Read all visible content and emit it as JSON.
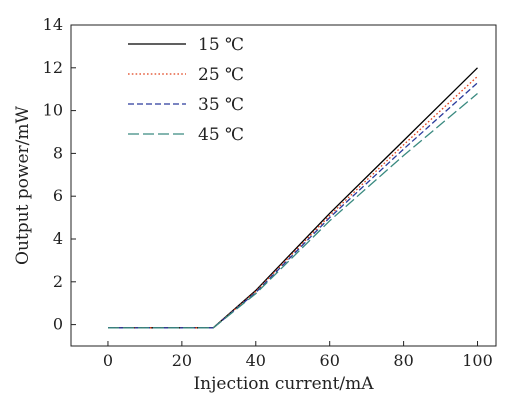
{
  "chart_data": {
    "type": "line",
    "title": "",
    "xlabel": "Injection current/mA",
    "ylabel": "Output power/mW",
    "xlim": [
      -10,
      105
    ],
    "ylim": [
      -1,
      14
    ],
    "xticks": [
      0,
      20,
      40,
      60,
      80,
      100
    ],
    "yticks": [
      0,
      2,
      4,
      6,
      8,
      10,
      12,
      14
    ],
    "grid": false,
    "legend_position": "top-left",
    "series": [
      {
        "name": "15 ℃",
        "color": "#000000",
        "dash": "solid",
        "x": [
          0,
          28.5,
          40,
          60,
          80,
          100
        ],
        "y": [
          -0.15,
          -0.15,
          1.6,
          5.2,
          8.6,
          12.0
        ]
      },
      {
        "name": "25 ℃",
        "color": "#e0401a",
        "dash": "dotted",
        "x": [
          0,
          28.5,
          40,
          60,
          80,
          100
        ],
        "y": [
          -0.15,
          -0.15,
          1.55,
          5.1,
          8.4,
          11.6
        ]
      },
      {
        "name": "35 ℃",
        "color": "#2a3a9c",
        "dash": "dashed",
        "x": [
          0,
          28.5,
          40,
          60,
          80,
          100
        ],
        "y": [
          -0.15,
          -0.15,
          1.5,
          5.0,
          8.2,
          11.3
        ]
      },
      {
        "name": "45 ℃",
        "color": "#3a8a80",
        "dash": "longdash",
        "x": [
          0,
          28.5,
          40,
          60,
          80,
          100
        ],
        "y": [
          -0.15,
          -0.15,
          1.45,
          4.85,
          7.9,
          10.8
        ]
      }
    ]
  }
}
